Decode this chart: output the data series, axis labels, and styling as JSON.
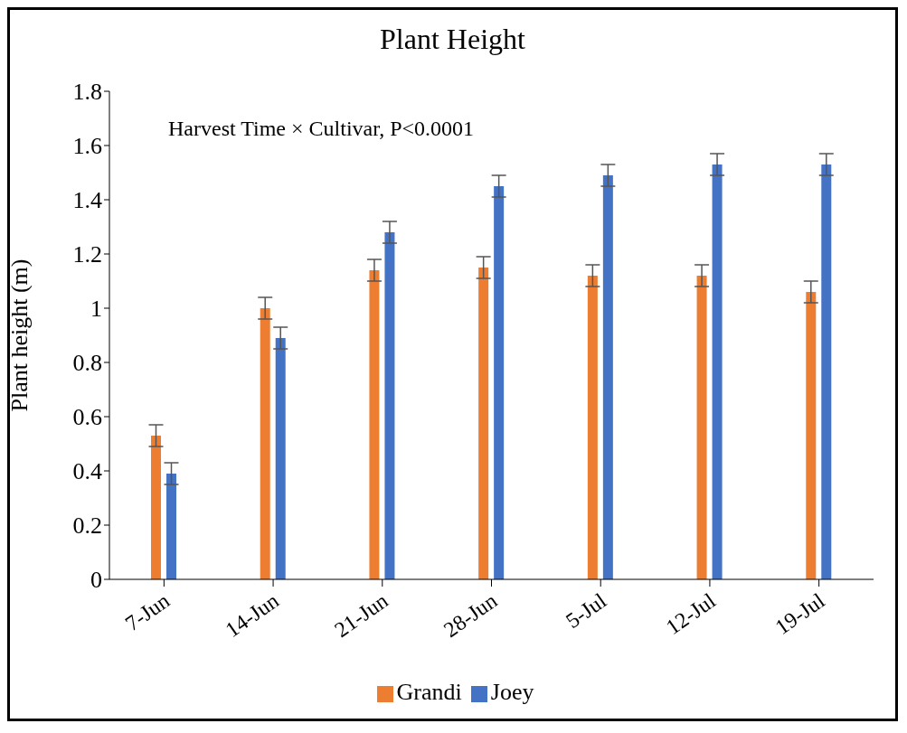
{
  "chart_data": {
    "type": "bar",
    "title": "Plant Height",
    "ylabel": "Plant height (m)",
    "annotations": [
      "Harvest Time × Cultivar, P<0.0001"
    ],
    "categories": [
      "7-Jun",
      "14-Jun",
      "21-Jun",
      "28-Jun",
      "5-Jul",
      "12-Jul",
      "19-Jul"
    ],
    "series": [
      {
        "name": "Grandi",
        "color": "#ed7d31",
        "values": [
          0.53,
          1.0,
          1.14,
          1.15,
          1.12,
          1.12,
          1.06
        ],
        "errors": [
          0.04,
          0.04,
          0.04,
          0.04,
          0.04,
          0.04,
          0.04
        ]
      },
      {
        "name": "Joey",
        "color": "#4472c4",
        "values": [
          0.39,
          0.89,
          1.28,
          1.45,
          1.49,
          1.53,
          1.53
        ],
        "errors": [
          0.04,
          0.04,
          0.04,
          0.04,
          0.04,
          0.04,
          0.04
        ]
      }
    ],
    "ylim": [
      0,
      1.8
    ],
    "yticks": [
      0,
      0.2,
      0.4,
      0.6,
      0.8,
      1,
      1.2,
      1.4,
      1.6,
      1.8
    ],
    "grid": false,
    "legend": "bottom"
  }
}
